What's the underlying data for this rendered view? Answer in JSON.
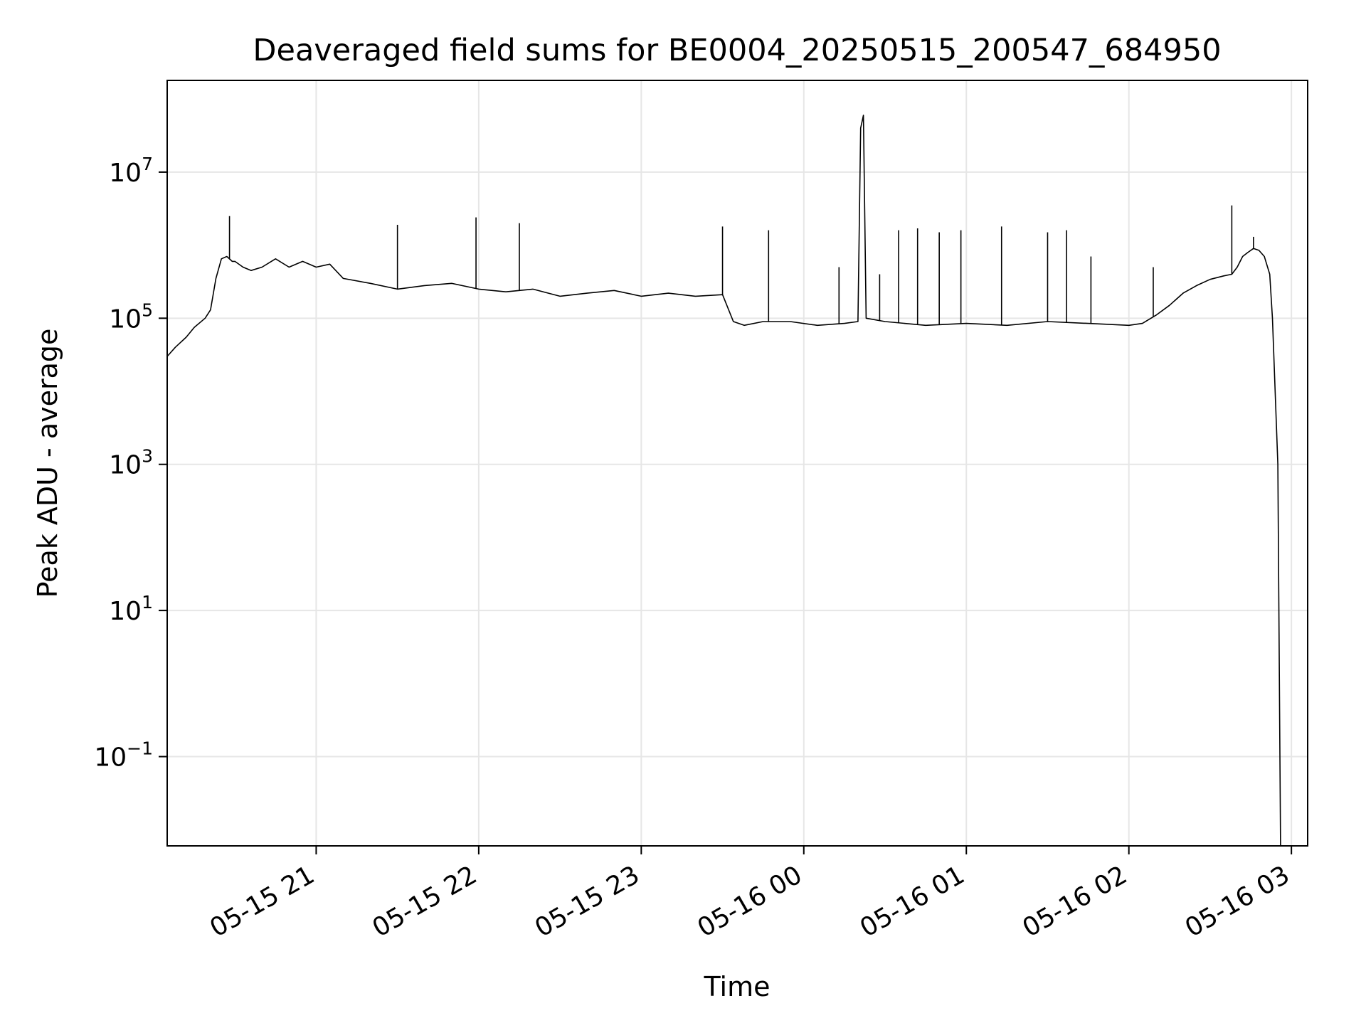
{
  "chart_data": {
    "type": "line",
    "title": "Deaveraged field sums for BE0004_20250515_200547_684950",
    "xlabel": "Time",
    "ylabel": "Peak ADU - average",
    "yscale": "log",
    "grid": true,
    "line_color": "#000000",
    "grid_color": "#e6e6e6",
    "xlim": [
      "2025-05-15 20:05",
      "2025-05-16 03:06"
    ],
    "ylim": [
      0.006,
      180000000
    ],
    "x_ticks": [
      {
        "value": "2025-05-15 21:00",
        "label": "05-15 21"
      },
      {
        "value": "2025-05-15 22:00",
        "label": "05-15 22"
      },
      {
        "value": "2025-05-15 23:00",
        "label": "05-15 23"
      },
      {
        "value": "2025-05-16 00:00",
        "label": "05-16 00"
      },
      {
        "value": "2025-05-16 01:00",
        "label": "05-16 01"
      },
      {
        "value": "2025-05-16 02:00",
        "label": "05-16 02"
      },
      {
        "value": "2025-05-16 03:00",
        "label": "05-16 03"
      }
    ],
    "y_ticks": [
      {
        "value": 0.1,
        "base": "10",
        "exp": "−1"
      },
      {
        "value": 10,
        "base": "10",
        "exp": "1"
      },
      {
        "value": 1000,
        "base": "10",
        "exp": "3"
      },
      {
        "value": 100000,
        "base": "10",
        "exp": "5"
      },
      {
        "value": 10000000,
        "base": "10",
        "exp": "7"
      }
    ],
    "series": [
      {
        "x": [
          "2025-05-15 20:05",
          "2025-05-15 20:08",
          "2025-05-15 20:12",
          "2025-05-15 20:15",
          "2025-05-15 20:19",
          "2025-05-15 20:21",
          "2025-05-15 20:23",
          "2025-05-15 20:25",
          "2025-05-15 20:27",
          "2025-05-15 20:29",
          "2025-05-15 20:30",
          "2025-05-15 20:33",
          "2025-05-15 20:36",
          "2025-05-15 20:40",
          "2025-05-15 20:45",
          "2025-05-15 20:50",
          "2025-05-15 20:55",
          "2025-05-15 21:00",
          "2025-05-15 21:05",
          "2025-05-15 21:10",
          "2025-05-15 21:20",
          "2025-05-15 21:30",
          "2025-05-15 21:40",
          "2025-05-15 21:50",
          "2025-05-15 22:00",
          "2025-05-15 22:10",
          "2025-05-15 22:20",
          "2025-05-15 22:30",
          "2025-05-15 22:40",
          "2025-05-15 22:50",
          "2025-05-15 23:00",
          "2025-05-15 23:10",
          "2025-05-15 23:20",
          "2025-05-15 23:30",
          "2025-05-15 23:34",
          "2025-05-15 23:38",
          "2025-05-15 23:45",
          "2025-05-15 23:55",
          "2025-05-16 00:05",
          "2025-05-16 00:15",
          "2025-05-16 00:20",
          "2025-05-16 00:21",
          "2025-05-16 00:22",
          "2025-05-16 00:23",
          "2025-05-16 00:30",
          "2025-05-16 00:45",
          "2025-05-16 01:00",
          "2025-05-16 01:15",
          "2025-05-16 01:30",
          "2025-05-16 01:45",
          "2025-05-16 02:00",
          "2025-05-16 02:05",
          "2025-05-16 02:10",
          "2025-05-16 02:15",
          "2025-05-16 02:20",
          "2025-05-16 02:25",
          "2025-05-16 02:30",
          "2025-05-16 02:35",
          "2025-05-16 02:38",
          "2025-05-16 02:40",
          "2025-05-16 02:42",
          "2025-05-16 02:44",
          "2025-05-16 02:46",
          "2025-05-16 02:48",
          "2025-05-16 02:50",
          "2025-05-16 02:52",
          "2025-05-16 02:53",
          "2025-05-16 02:54",
          "2025-05-16 02:55",
          "2025-05-16 02:56"
        ],
        "y": [
          30000,
          40000,
          55000,
          75000,
          100000,
          130000,
          350000,
          650000,
          700000,
          600000,
          600000,
          500000,
          450000,
          500000,
          650000,
          500000,
          600000,
          500000,
          550000,
          350000,
          300000,
          250000,
          280000,
          300000,
          250000,
          230000,
          250000,
          200000,
          220000,
          240000,
          200000,
          220000,
          200000,
          210000,
          90000,
          80000,
          90000,
          90000,
          80000,
          85000,
          90000,
          40000000,
          60000000,
          100000,
          90000,
          80000,
          85000,
          80000,
          90000,
          85000,
          80000,
          85000,
          110000,
          150000,
          220000,
          280000,
          340000,
          380000,
          400000,
          500000,
          700000,
          800000,
          900000,
          850000,
          700000,
          400000,
          100000,
          10000,
          1000,
          0.006
        ]
      }
    ],
    "spikes": [
      {
        "x": "2025-05-15 20:28",
        "y": 2500000
      },
      {
        "x": "2025-05-15 21:30",
        "y": 1900000
      },
      {
        "x": "2025-05-15 21:59",
        "y": 2400000
      },
      {
        "x": "2025-05-15 22:15",
        "y": 2000000
      },
      {
        "x": "2025-05-15 23:30",
        "y": 1800000
      },
      {
        "x": "2025-05-15 23:47",
        "y": 1600000
      },
      {
        "x": "2025-05-16 00:13",
        "y": 500000
      },
      {
        "x": "2025-05-16 00:28",
        "y": 400000
      },
      {
        "x": "2025-05-16 00:35",
        "y": 1600000
      },
      {
        "x": "2025-05-16 00:42",
        "y": 1700000
      },
      {
        "x": "2025-05-16 00:50",
        "y": 1500000
      },
      {
        "x": "2025-05-16 00:58",
        "y": 1600000
      },
      {
        "x": "2025-05-16 01:13",
        "y": 1800000
      },
      {
        "x": "2025-05-16 01:30",
        "y": 1500000
      },
      {
        "x": "2025-05-16 01:37",
        "y": 1600000
      },
      {
        "x": "2025-05-16 01:46",
        "y": 700000
      },
      {
        "x": "2025-05-16 02:09",
        "y": 500000
      },
      {
        "x": "2025-05-16 02:38",
        "y": 3500000
      },
      {
        "x": "2025-05-16 02:46",
        "y": 1300000
      }
    ]
  }
}
